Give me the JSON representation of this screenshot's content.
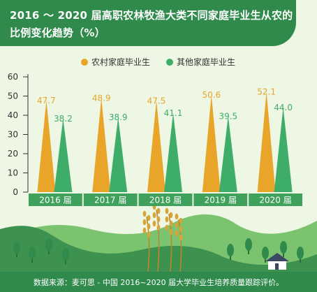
{
  "title_lines": [
    "2016 ～ 2020 届高职农林牧渔大类不同家庭毕业生从农的",
    "比例变化趋势（%）"
  ],
  "colors": {
    "rural": "#e8a52a",
    "other": "#3fad6a",
    "header": "#2f8a4c",
    "axis_band": "#3fa15b",
    "hill_dark": "#3e9250",
    "hill_light": "#7cc36f",
    "tree": "#2f8a4c",
    "wheat": "#d8a438"
  },
  "source": "数据来源：麦可思 - 中国 2016~2020 届大学毕业生培养质量跟踪评价。",
  "chart_data": {
    "type": "bar",
    "title": "2016 ～ 2020 届高职农林牧渔大类不同家庭毕业生从农的比例变化趋势（%）",
    "categories": [
      "2016 届",
      "2017 届",
      "2018 届",
      "2019 届",
      "2020 届"
    ],
    "series": [
      {
        "name": "农村家庭毕业生",
        "color": "#e8a52a",
        "values": [
          47.7,
          48.9,
          47.5,
          50.6,
          52.1
        ]
      },
      {
        "name": "其他家庭毕业生",
        "color": "#3fad6a",
        "values": [
          38.2,
          38.9,
          41.1,
          39.5,
          44.0
        ]
      }
    ],
    "value_labels": [
      [
        "47.7",
        "48.9",
        "47.5",
        "50.6",
        "52.1"
      ],
      [
        "38.2",
        "38.9",
        "41.1",
        "39.5",
        "44.0"
      ]
    ],
    "yticks": [
      "0",
      "10",
      "20",
      "30",
      "40",
      "50",
      "60"
    ],
    "ylim": [
      0,
      60
    ],
    "legend": "top-center",
    "grid": false,
    "mark_shape": "triangle"
  }
}
